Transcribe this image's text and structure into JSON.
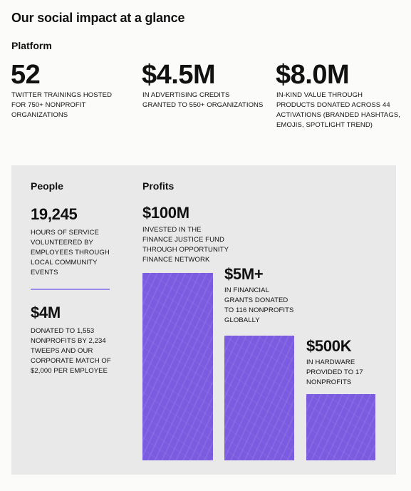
{
  "title": "Our social impact at a glance",
  "platform": {
    "heading": "Platform",
    "stats": [
      {
        "value": "52",
        "desc": [
          "TWITTER TRAININGS HOSTED",
          "FOR 750+ NONPROFIT",
          "ORGANIZATIONS"
        ]
      },
      {
        "value": "$4.5M",
        "desc": [
          "IN ADVERTISING CREDITS",
          "GRANTED TO 550+ ORGANIZATIONS"
        ]
      },
      {
        "value": "$8.0M",
        "desc": [
          "IN-KIND VALUE THROUGH",
          "PRODUCTS DONATED ACROSS 44",
          "ACTIVATIONS (BRANDED HASHTAGS,",
          "EMOJIS, SPOTLIGHT TREND)"
        ]
      }
    ]
  },
  "people": {
    "heading": "People",
    "stats": [
      {
        "value": "19,245",
        "desc": [
          "HOURS OF SERVICE",
          "VOLUNTEERED BY",
          "EMPLOYEES THROUGH",
          "LOCAL COMMUNITY",
          "EVENTS"
        ]
      },
      {
        "value": "$4M",
        "desc": [
          "DONATED TO 1,553",
          "NONPROFITS BY 2,234",
          "TWEEPS AND OUR",
          "CORPORATE MATCH OF",
          "$2,000 PER EMPLOYEE"
        ]
      }
    ]
  },
  "profits": {
    "heading": "Profits",
    "stats": [
      {
        "value": "$100M",
        "desc": [
          "INVESTED IN THE",
          "FINANCE JUSTICE FUND",
          "THROUGH OPPORTUNITY",
          "FINANCE NETWORK"
        ]
      },
      {
        "value": "$5M+",
        "desc": [
          "IN FINANCIAL",
          "GRANTS DONATED",
          "TO 116 NONPROFITS",
          "GLOBALLY"
        ]
      },
      {
        "value": "$500K",
        "desc": [
          "IN HARDWARE",
          "PROVIDED TO 17",
          "NONPROFITS"
        ]
      }
    ]
  },
  "colors": {
    "accent": "#7b5be0",
    "panel": "#e9e9e9"
  }
}
